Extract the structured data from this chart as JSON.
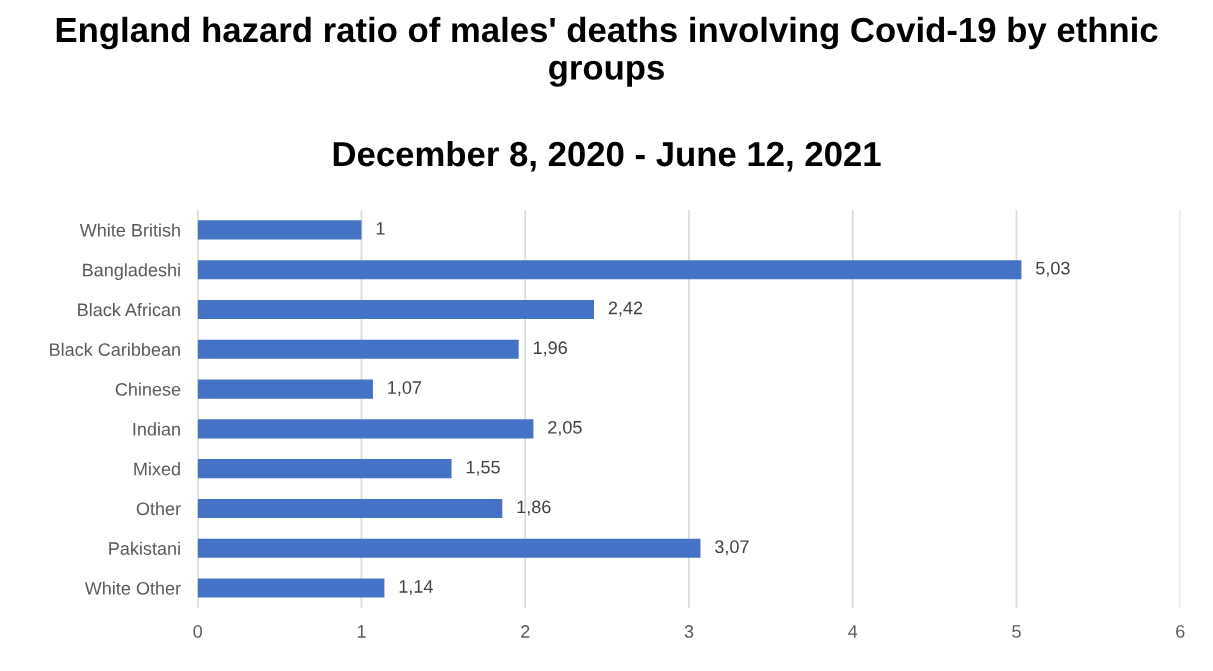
{
  "chart_data": {
    "type": "bar",
    "orientation": "horizontal",
    "title": "England hazard ratio of males' deaths involving Covid-19 by ethnic groups",
    "subtitle": "December 8, 2020 - June 12, 2021",
    "categories": [
      "White British",
      "Bangladeshi",
      "Black African",
      "Black Caribbean",
      "Chinese",
      "Indian",
      "Mixed",
      "Other",
      "Pakistani",
      "White Other"
    ],
    "values": [
      1,
      5.03,
      2.42,
      1.96,
      1.07,
      2.05,
      1.55,
      1.86,
      3.07,
      1.14
    ],
    "value_labels": [
      "1",
      "5,03",
      "2,42",
      "1,96",
      "1,07",
      "2,05",
      "1,55",
      "1,86",
      "3,07",
      "1,14"
    ],
    "color": "#4472c4",
    "xlim": [
      0,
      6
    ],
    "xticks": [
      0,
      1,
      2,
      3,
      4,
      5,
      6
    ],
    "grid": "x",
    "legend": false
  }
}
